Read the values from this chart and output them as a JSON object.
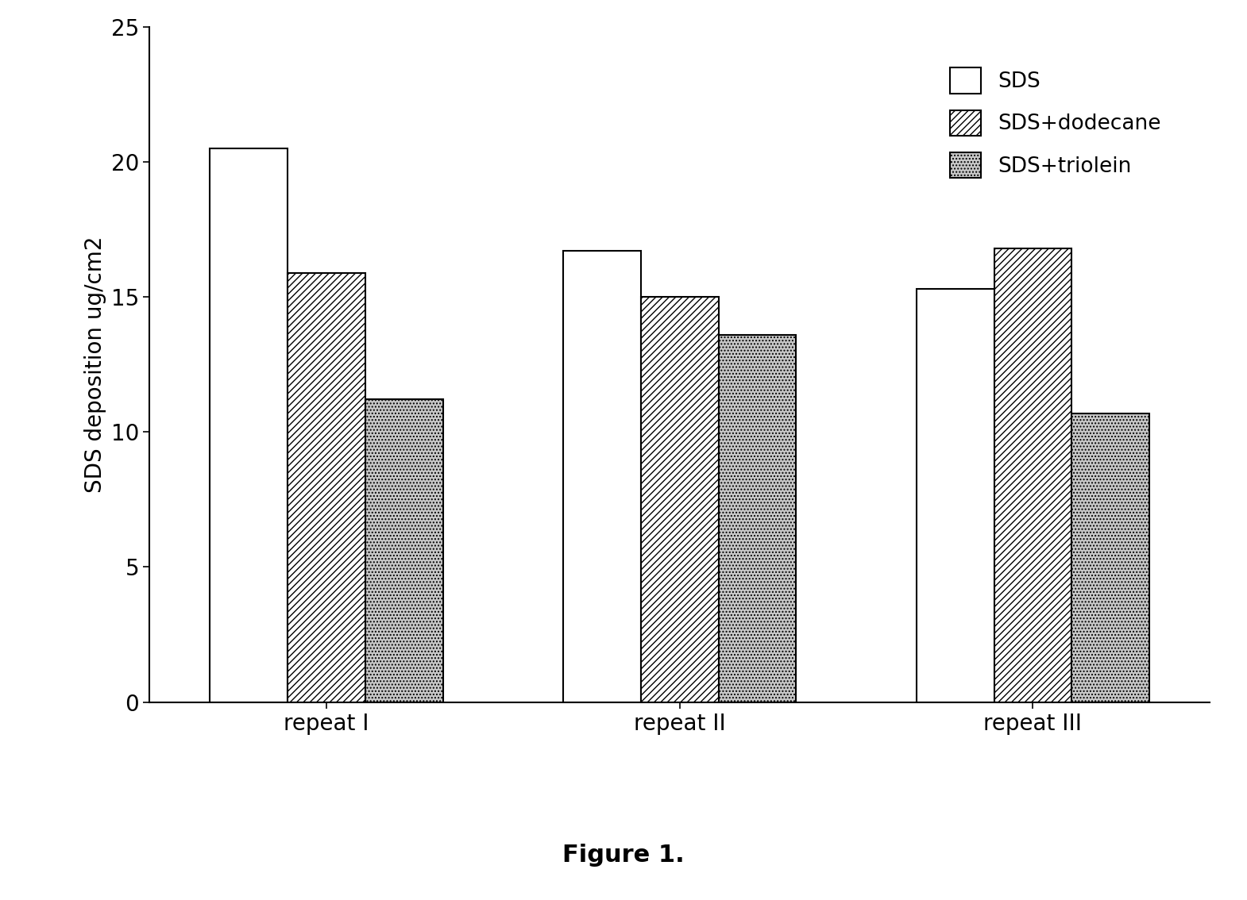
{
  "categories": [
    "repeat I",
    "repeat II",
    "repeat III"
  ],
  "series": {
    "SDS": [
      20.5,
      16.7,
      15.3
    ],
    "SDS+dodecane": [
      15.9,
      15.0,
      16.8
    ],
    "SDS+triolein": [
      11.2,
      13.6,
      10.7
    ]
  },
  "ylabel": "SDS deposition ug/cm2",
  "ylim": [
    0,
    25
  ],
  "yticks": [
    0,
    5,
    10,
    15,
    20,
    25
  ],
  "legend_labels": [
    "SDS",
    "SDS+dodecane",
    "SDS+triolein"
  ],
  "figure_caption": "Figure 1.",
  "bar_width": 0.22,
  "colors": [
    "#ffffff",
    "#ffffff",
    "#c8c8c8"
  ],
  "hatch_patterns": [
    "",
    "////",
    "...."
  ],
  "edgecolors": [
    "#000000",
    "#000000",
    "#000000"
  ],
  "background_color": "#ffffff",
  "label_fontsize": 20,
  "tick_fontsize": 20,
  "legend_fontsize": 19,
  "caption_fontsize": 22
}
